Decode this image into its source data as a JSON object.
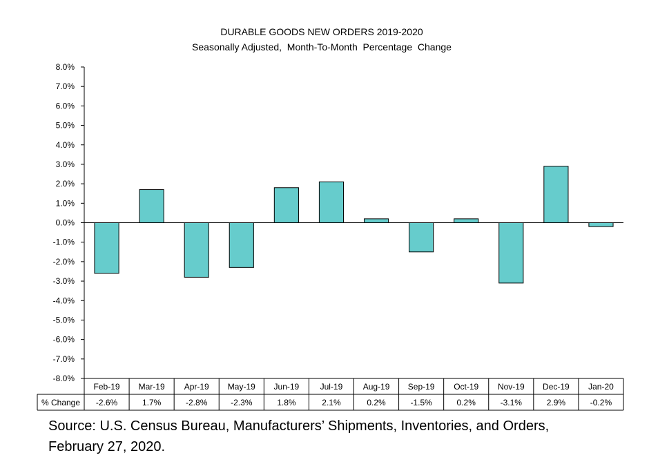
{
  "chart_data": {
    "type": "bar",
    "title": "DURABLE GOODS NEW ORDERS 2019-2020",
    "subtitle": "Seasonally Adjusted,  Month-To-Month  Percentage  Change",
    "xlabel": "",
    "ylabel": "",
    "ylim": [
      -8.0,
      8.0
    ],
    "y_ticks": [
      "8.0%",
      "7.0%",
      "6.0%",
      "5.0%",
      "4.0%",
      "3.0%",
      "2.0%",
      "1.0%",
      "0.0%",
      "-1.0%",
      "-2.0%",
      "-3.0%",
      "-4.0%",
      "-5.0%",
      "-6.0%",
      "-7.0%",
      "-8.0%"
    ],
    "categories": [
      "Feb-19",
      "Mar-19",
      "Apr-19",
      "May-19",
      "Jun-19",
      "Jul-19",
      "Aug-19",
      "Sep-19",
      "Oct-19",
      "Nov-19",
      "Dec-19",
      "Jan-20"
    ],
    "values": [
      -2.6,
      1.7,
      -2.8,
      -2.3,
      1.8,
      2.1,
      0.2,
      -1.5,
      0.2,
      -3.1,
      2.9,
      -0.2
    ],
    "table_row_label": "% Change",
    "table_values": [
      "-2.6%",
      "1.7%",
      "-2.8%",
      "-2.3%",
      "1.8%",
      "2.1%",
      "0.2%",
      "-1.5%",
      "0.2%",
      "-3.1%",
      "2.9%",
      "-0.2%"
    ],
    "bar_color": "#66CCCC",
    "grid": false,
    "legend": "none"
  },
  "source": {
    "line1": "Source: U.S. Census Bureau, Manufacturers’ Shipments, Inventories, and Orders,",
    "line2": "February 27, 2020."
  }
}
